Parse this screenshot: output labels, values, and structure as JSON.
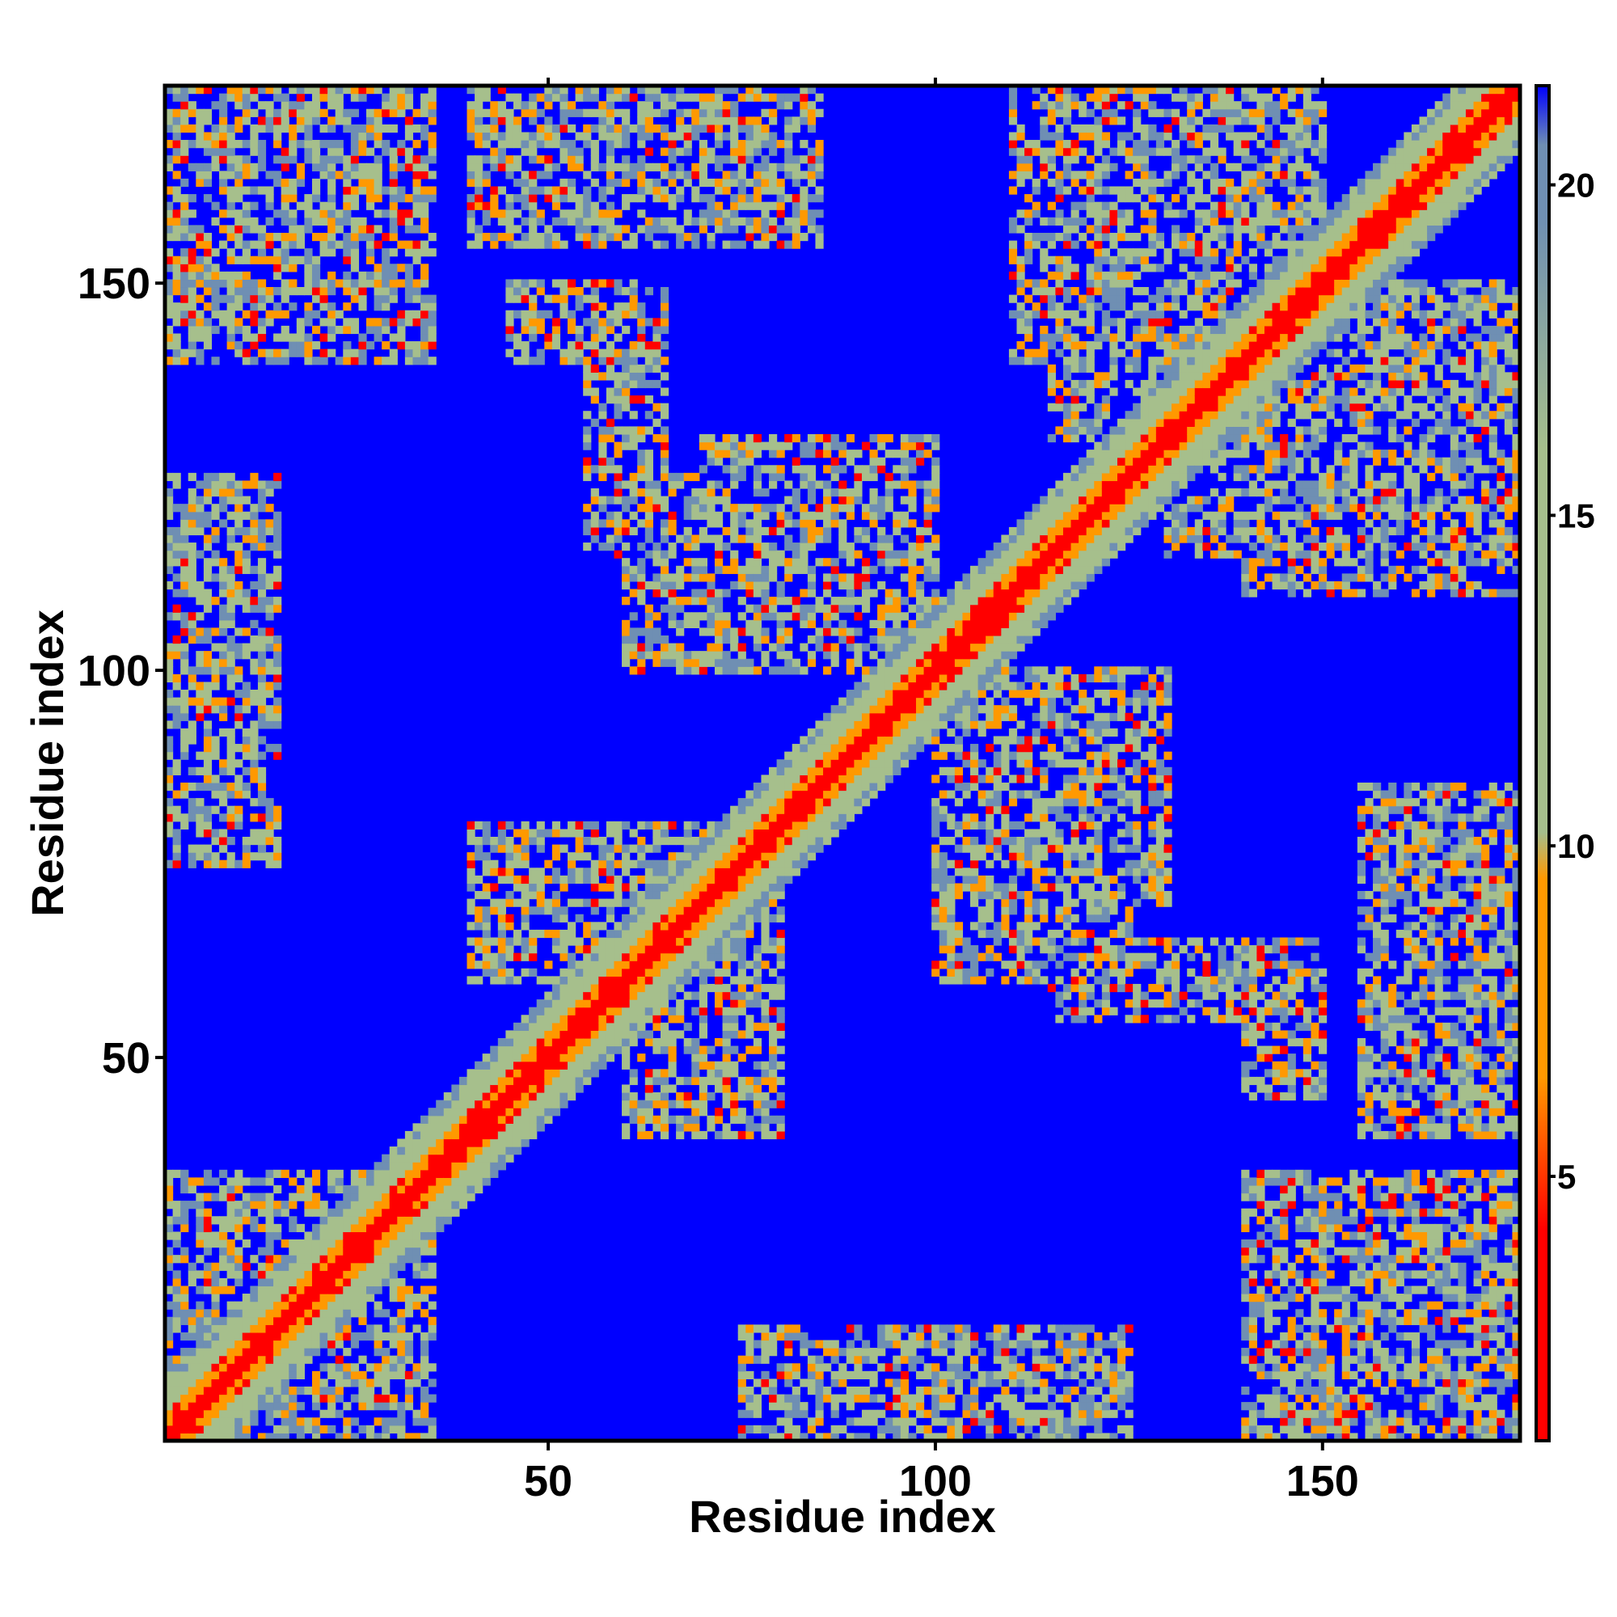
{
  "chart_data": {
    "type": "heatmap",
    "title": "",
    "xlabel": "Residue index",
    "ylabel": "Residue index",
    "n_residues": 175,
    "x_range": [
      1,
      175
    ],
    "y_range": [
      1,
      175
    ],
    "x_ticks": [
      50,
      100,
      150
    ],
    "y_ticks": [
      50,
      100,
      150
    ],
    "grid": false,
    "colorbar": {
      "position": "right",
      "range": [
        1,
        21.5
      ],
      "ticks": [
        5,
        10,
        15,
        20
      ],
      "colors": {
        "near": "#ff0000",
        "close": "#ff9900",
        "mid": "#a6bf8c",
        "far": "#6f8fb3",
        "background": "#0000ff"
      }
    },
    "values_description_ranges": {
      "diagonal_band_width_residues": 3,
      "mid_band_width_residues": 8
    },
    "contact_clusters": [
      {
        "x": [
          1,
          35
        ],
        "y": [
          145,
          175
        ],
        "level": "mixed"
      },
      {
        "x": [
          40,
          85
        ],
        "y": [
          160,
          175
        ],
        "level": "mixed"
      },
      {
        "x": [
          45,
          65
        ],
        "y": [
          140,
          150
        ],
        "level": "mixed"
      },
      {
        "x": [
          1,
          15
        ],
        "y": [
          80,
          125
        ],
        "level": "mixed"
      },
      {
        "x": [
          40,
          75
        ],
        "y": [
          60,
          80
        ],
        "level": "mixed"
      },
      {
        "x": [
          60,
          80
        ],
        "y": [
          45,
          60
        ],
        "level": "mixed"
      },
      {
        "x": [
          60,
          100
        ],
        "y": [
          100,
          125
        ],
        "level": "mixed"
      },
      {
        "x": [
          100,
          130
        ],
        "y": [
          70,
          100
        ],
        "level": "mixed"
      },
      {
        "x": [
          115,
          150
        ],
        "y": [
          55,
          65
        ],
        "level": "mixed"
      },
      {
        "x": [
          110,
          140
        ],
        "y": [
          160,
          175
        ],
        "level": "mixed"
      },
      {
        "x": [
          115,
          145
        ],
        "y": [
          130,
          150
        ],
        "level": "mixed"
      },
      {
        "x": [
          140,
          175
        ],
        "y": [
          110,
          150
        ],
        "level": "mixed"
      },
      {
        "x": [
          155,
          175
        ],
        "y": [
          40,
          85
        ],
        "level": "mixed"
      },
      {
        "x": [
          140,
          175
        ],
        "y": [
          1,
          35
        ],
        "level": "mixed"
      },
      {
        "x": [
          75,
          120
        ],
        "y": [
          1,
          15
        ],
        "level": "mixed"
      },
      {
        "x": [
          1,
          35
        ],
        "y": [
          1,
          35
        ],
        "level": "mixed"
      }
    ]
  }
}
